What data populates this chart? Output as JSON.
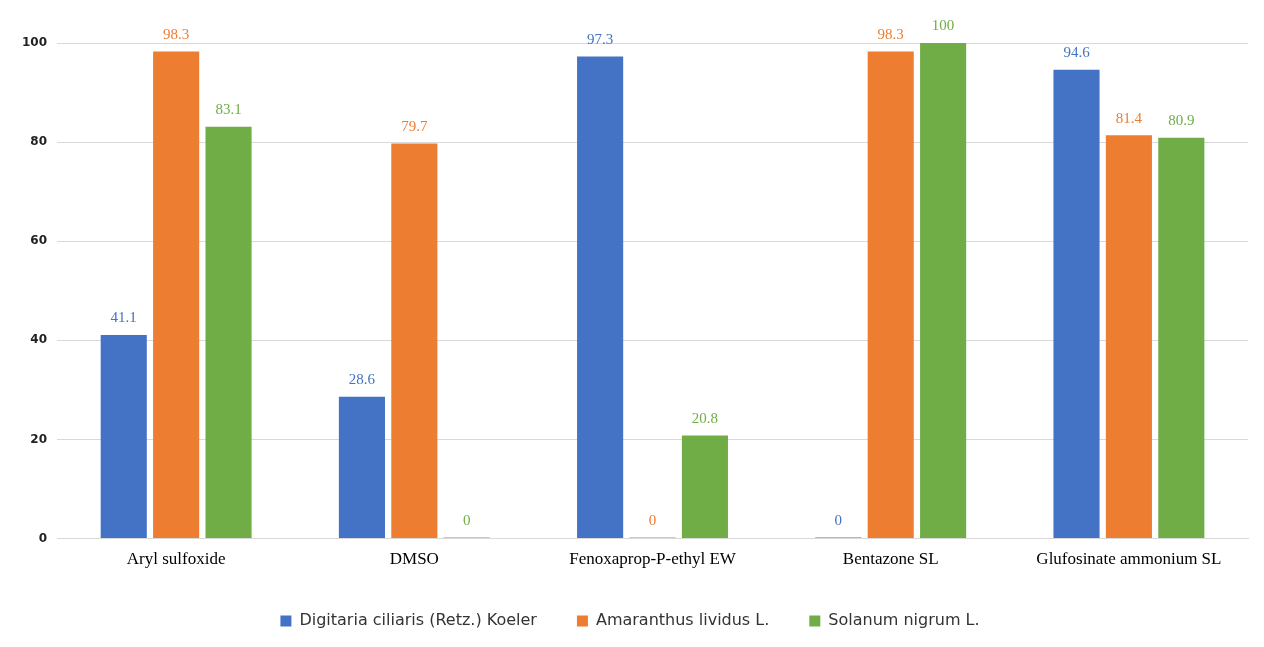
{
  "chart_data": {
    "type": "bar",
    "categories": [
      "Aryl sulfoxide",
      "DMSO",
      "Fenoxaprop-P-ethyl EW",
      "Bentazone SL",
      "Glufosinate ammonium SL"
    ],
    "series": [
      {
        "name": "Digitaria ciliaris (Retz.) Koeler",
        "color": "#4472c4",
        "values": [
          41.1,
          28.6,
          97.3,
          0,
          94.6
        ]
      },
      {
        "name": "Amaranthus lividus L.",
        "color": "#ed7d31",
        "values": [
          98.3,
          79.7,
          0,
          98.3,
          81.4
        ]
      },
      {
        "name": "Solanum nigrum L.",
        "color": "#70ad47",
        "values": [
          83.1,
          0,
          20.8,
          100,
          80.9
        ]
      }
    ],
    "ylim": [
      0,
      100
    ],
    "yticks": [
      0,
      20,
      40,
      60,
      80,
      100
    ],
    "grid": "y",
    "legend": "bottom",
    "data_labels": true
  }
}
